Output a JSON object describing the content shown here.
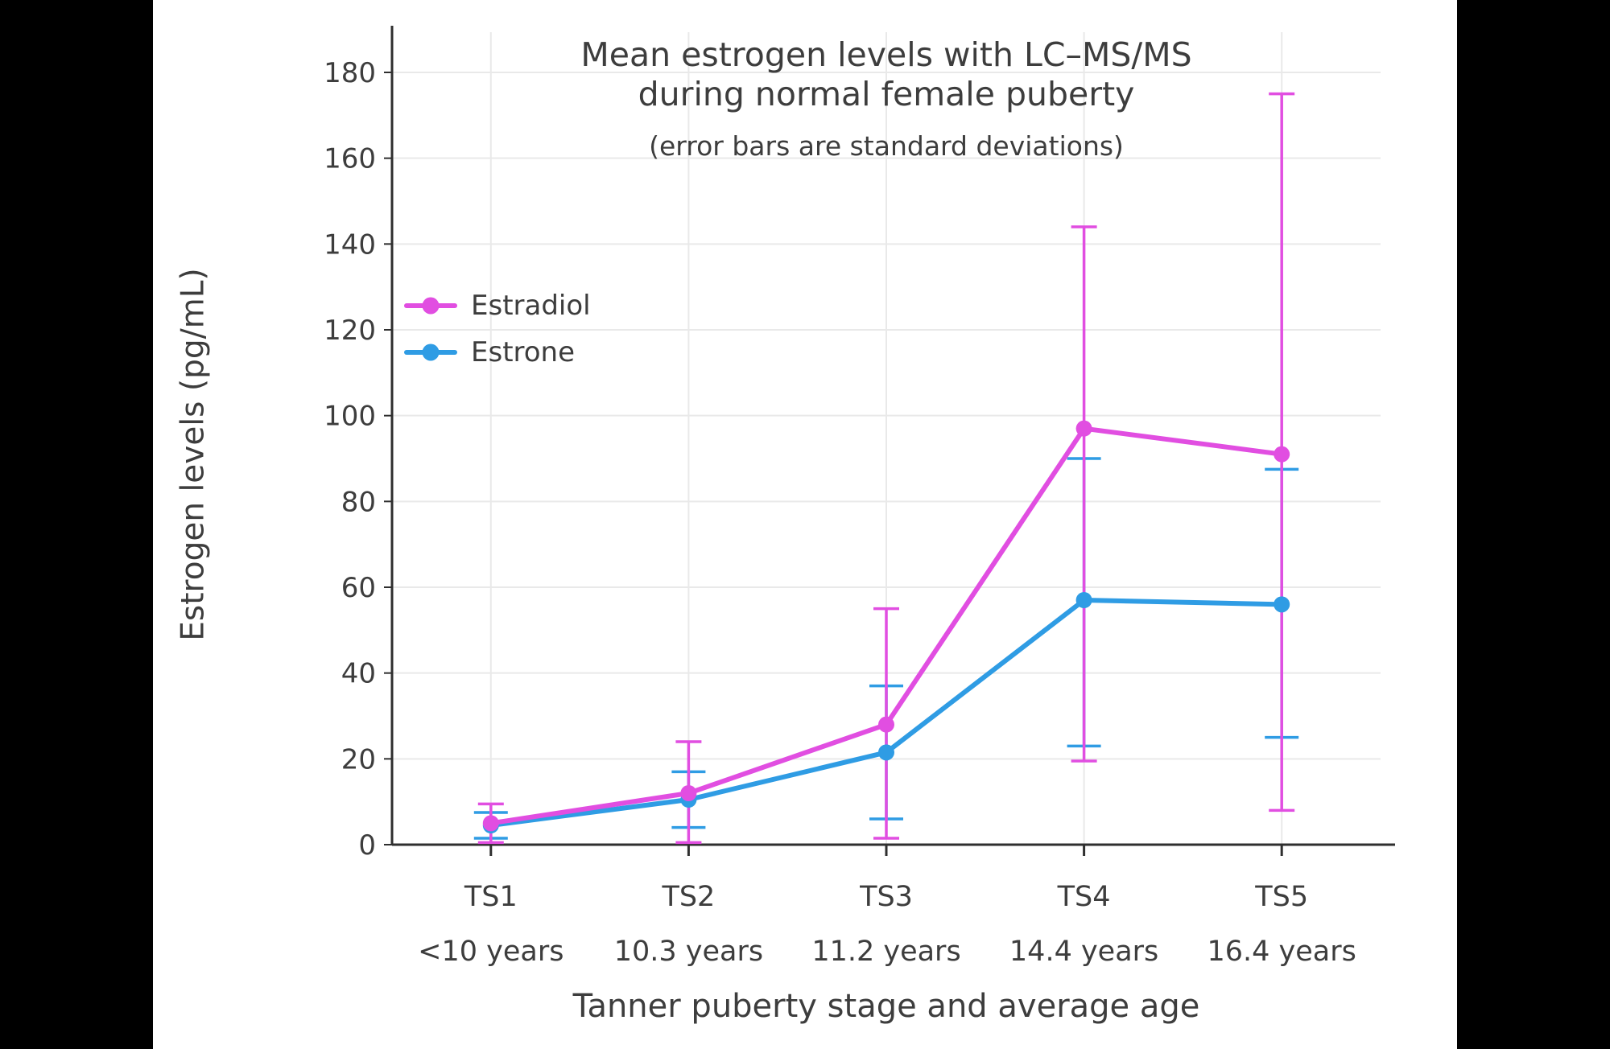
{
  "canvas": {
    "side_bar_color": "#000000",
    "panel_color": "#ffffff"
  },
  "chart_data": {
    "type": "line",
    "title_line1": "Mean estrogen levels with LC–MS/MS",
    "title_line2": "during normal female puberty",
    "subtitle": "(error bars are standard deviations)",
    "ylabel": "Estrogen levels (pg/mL)",
    "xlabel": "Tanner puberty stage and average age",
    "categories": [
      "TS1",
      "TS2",
      "TS3",
      "TS4",
      "TS5"
    ],
    "category_ages": [
      "<10 years",
      "10.3 years",
      "11.2 years",
      "14.4 years",
      "16.4 years"
    ],
    "yticks": [
      0,
      20,
      40,
      60,
      80,
      100,
      120,
      140,
      160,
      180
    ],
    "ylim": [
      0,
      190
    ],
    "grid": true,
    "legend_position": "inside-upper-left",
    "error_bar_meaning": "standard deviation",
    "series": [
      {
        "name": "Estradiol",
        "color": "#e14ee1",
        "values": [
          5,
          12,
          28,
          97,
          91
        ],
        "error_low": [
          0.5,
          0.5,
          1.5,
          19.5,
          8
        ],
        "error_high": [
          9.5,
          24,
          55,
          144,
          175
        ]
      },
      {
        "name": "Estrone",
        "color": "#2f9ce4",
        "values": [
          4.5,
          10.5,
          21.5,
          57,
          56
        ],
        "error_low": [
          1.5,
          4,
          6,
          23,
          25
        ],
        "error_high": [
          7.5,
          17,
          37,
          90,
          87.5
        ]
      }
    ],
    "axis_color": "#2f2f2f",
    "grid_color": "#e9e9e9",
    "text_color": "#3d3d3d"
  }
}
